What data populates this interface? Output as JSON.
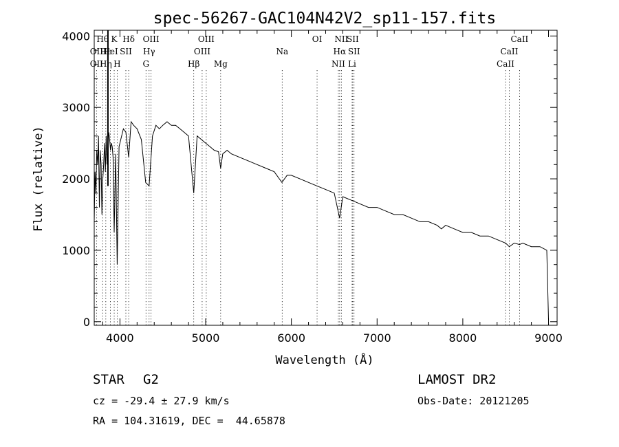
{
  "chart_data": {
    "type": "line",
    "title": "spec-56267-GAC104N42V2_sp11-157.fits",
    "xlabel": "Wavelength (Å)",
    "ylabel": "Flux (relative)",
    "xlim": [
      3700,
      9100
    ],
    "ylim": [
      -50,
      4080
    ],
    "xticks": [
      4000,
      5000,
      6000,
      7000,
      8000,
      9000
    ],
    "yticks": [
      0,
      1000,
      2000,
      3000,
      4000
    ],
    "grid": false,
    "series": [
      {
        "x": [
          3700,
          3710,
          3720,
          3730,
          3740,
          3750,
          3760,
          3770,
          3780,
          3790,
          3800,
          3810,
          3820,
          3830,
          3840,
          3850,
          3860,
          3870,
          3880,
          3890,
          3900,
          3910,
          3920,
          3933,
          3950,
          3968,
          3990,
          4010,
          4040,
          4070,
          4102,
          4130,
          4160,
          4200,
          4250,
          4300,
          4340,
          4380,
          4420,
          4460,
          4500,
          4550,
          4600,
          4650,
          4700,
          4750,
          4800,
          4861,
          4900,
          4950,
          5000,
          5050,
          5100,
          5150,
          5175,
          5200,
          5250,
          5300,
          5400,
          5500,
          5600,
          5700,
          5800,
          5890,
          5950,
          6000,
          6100,
          6200,
          6300,
          6400,
          6500,
          6563,
          6600,
          6700,
          6800,
          6900,
          7000,
          7100,
          7200,
          7300,
          7400,
          7500,
          7600,
          7700,
          7750,
          7800,
          7900,
          8000,
          8100,
          8200,
          8300,
          8400,
          8500,
          8542,
          8600,
          8662,
          8700,
          8800,
          8900,
          8980,
          8990,
          9000
        ],
        "y": [
          1400,
          2100,
          1800,
          2400,
          2200,
          2600,
          1600,
          2400,
          2200,
          1500,
          2000,
          2200,
          2500,
          2100,
          2600,
          2200,
          2500,
          2650,
          2550,
          2400,
          2500,
          2450,
          2300,
          1250,
          2350,
          800,
          2450,
          2550,
          2700,
          2650,
          2300,
          2800,
          2750,
          2700,
          2550,
          1950,
          1900,
          2600,
          2750,
          2700,
          2750,
          2800,
          2750,
          2750,
          2700,
          2650,
          2600,
          1800,
          2600,
          2550,
          2500,
          2450,
          2400,
          2380,
          2150,
          2350,
          2400,
          2350,
          2300,
          2250,
          2200,
          2150,
          2100,
          1950,
          2050,
          2050,
          2000,
          1950,
          1900,
          1850,
          1800,
          1450,
          1750,
          1700,
          1650,
          1600,
          1600,
          1550,
          1500,
          1500,
          1450,
          1400,
          1400,
          1350,
          1300,
          1350,
          1300,
          1250,
          1250,
          1200,
          1200,
          1150,
          1100,
          1050,
          1100,
          1080,
          1100,
          1050,
          1050,
          1000,
          500,
          30
        ]
      }
    ],
    "spectral_lines": [
      {
        "label": "Hθ",
        "x": 3798,
        "row": 0
      },
      {
        "label": "K",
        "x": 3933,
        "row": 0
      },
      {
        "label": "Hδ",
        "x": 4102,
        "row": 0
      },
      {
        "label": "OIII",
        "x": 4363,
        "row": 0
      },
      {
        "label": "OIII",
        "x": 5007,
        "row": 0
      },
      {
        "label": "OI",
        "x": 6300,
        "row": 0
      },
      {
        "label": "NII",
        "x": 6583,
        "row": 0
      },
      {
        "label": "SII",
        "x": 6716,
        "row": 0
      },
      {
        "label": "CaII",
        "x": 8662,
        "row": 0
      },
      {
        "label": "OII",
        "x": 3727,
        "row": 1
      },
      {
        "label": "Hε",
        "x": 3835,
        "row": 1
      },
      {
        "label": "HeI",
        "x": 3889,
        "row": 1
      },
      {
        "label": "SII",
        "x": 4069,
        "row": 1
      },
      {
        "label": "Hγ",
        "x": 4340,
        "row": 1
      },
      {
        "label": "OIII",
        "x": 4959,
        "row": 1
      },
      {
        "label": "Na",
        "x": 5893,
        "row": 1
      },
      {
        "label": "Hα",
        "x": 6563,
        "row": 1
      },
      {
        "label": "SII",
        "x": 6731,
        "row": 1
      },
      {
        "label": "CaII",
        "x": 8542,
        "row": 1
      },
      {
        "label": "OII",
        "x": 3727,
        "row": 2
      },
      {
        "label": "Hη",
        "x": 3835,
        "row": 2
      },
      {
        "label": "H",
        "x": 3968,
        "row": 2
      },
      {
        "label": "G",
        "x": 4304,
        "row": 2
      },
      {
        "label": "Hβ",
        "x": 4861,
        "row": 2
      },
      {
        "label": "Mg",
        "x": 5175,
        "row": 2
      },
      {
        "label": "NII",
        "x": 6548,
        "row": 2
      },
      {
        "label": "Li",
        "x": 6708,
        "row": 2
      },
      {
        "label": "CaII",
        "x": 8498,
        "row": 2
      }
    ]
  },
  "info": {
    "class": "STAR",
    "subclass": "G2",
    "survey": "LAMOST DR2",
    "cz": "cz = -29.4 ± 27.9 km/s",
    "obs_date": "Obs-Date: 20121205",
    "coords": "RA = 104.31619, DEC =  44.65878"
  }
}
